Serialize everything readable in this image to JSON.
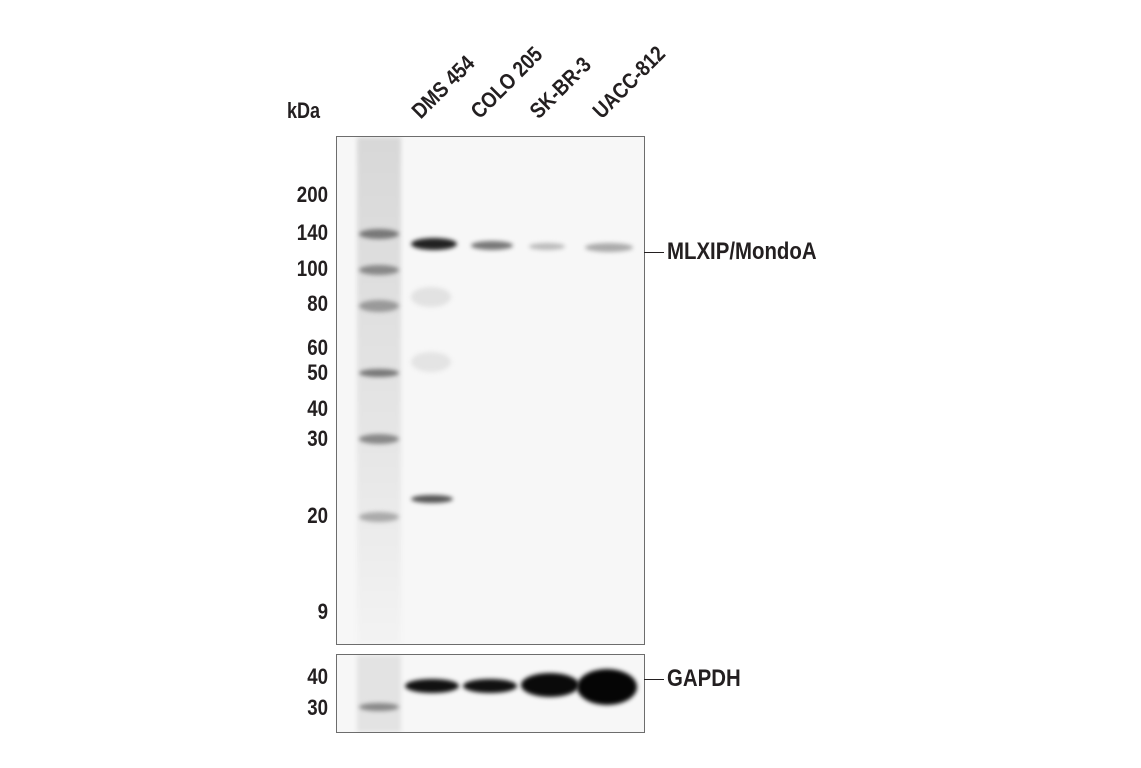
{
  "units_label": "kDa",
  "lanes": [
    "DMS 454",
    "COLO 205",
    "SK-BR-3",
    "UACC-812"
  ],
  "main_panel": {
    "markers": [
      "200",
      "140",
      "100",
      "80",
      "60",
      "50",
      "40",
      "30",
      "20",
      "9"
    ],
    "target_label": "MLXIP/MondoA"
  },
  "loading_panel": {
    "markers": [
      "40",
      "30"
    ],
    "target_label": "GAPDH"
  }
}
